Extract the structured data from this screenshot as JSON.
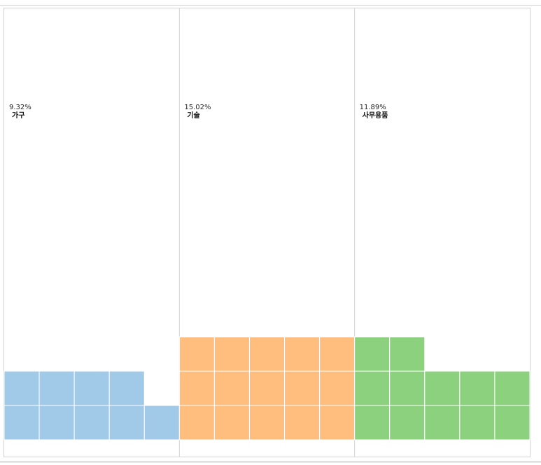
{
  "chart_data": {
    "type": "waffle",
    "title": "",
    "panels": [
      {
        "category": "가구",
        "percent_label": "9.32%",
        "value": 9.32,
        "color": "#a1c9e8"
      },
      {
        "category": "기술",
        "percent_label": "15.02%",
        "value": 15.02,
        "color": "#ffbe7d"
      },
      {
        "category": "사무용품",
        "percent_label": "11.89%",
        "value": 11.89,
        "color": "#8cd17d"
      }
    ],
    "grid_columns": 5,
    "units_per_cell": 1,
    "gridlines": true
  }
}
